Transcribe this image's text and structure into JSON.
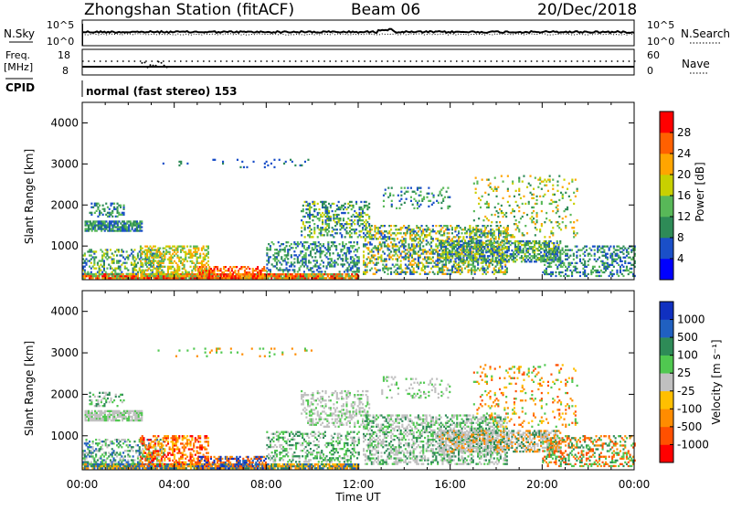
{
  "header": {
    "station": "Zhongshan Station (fitACF)",
    "beam": "Beam 06",
    "date": "20/Dec/2018"
  },
  "top_panel": {
    "left_label": "N.Sky",
    "left_tick_high": "10^5",
    "left_tick_low": "10^0",
    "right_label": "N.Search",
    "right_tick_high": "10^5",
    "right_tick_low": "10^0"
  },
  "freq_panel": {
    "left_label_line1": "Freq.",
    "left_label_line2": "[MHz]",
    "left_tick_high": "18",
    "left_tick_low": "8",
    "right_label": "Nave",
    "right_tick_high": "60",
    "right_tick_low": "0"
  },
  "cpid": {
    "label": "CPID",
    "mode": "normal (fast stereo) 153"
  },
  "colors": {
    "power": [
      "#0000ff",
      "#1a4fc8",
      "#2e8b57",
      "#58b858",
      "#c8d000",
      "#ffa500",
      "#ff6000",
      "#ff0000"
    ],
    "velocity": [
      "#ff0000",
      "#ff5000",
      "#ff8c00",
      "#ffbf00",
      "#c0c0c0",
      "#50c850",
      "#2e8b57",
      "#2060c0",
      "#1030c0"
    ]
  },
  "chart_data": [
    {
      "type": "heatmap",
      "name": "power",
      "ylabel": "Slant Range [km]",
      "yticks": [
        "1000",
        "2000",
        "3000",
        "4000"
      ],
      "colorbar_label": "Power [dB]",
      "colorbar_ticks": [
        "4",
        "8",
        "12",
        "16",
        "20",
        "24",
        "28"
      ],
      "ylim": [
        180,
        4500
      ],
      "xlim": [
        0,
        24
      ]
    },
    {
      "type": "heatmap",
      "name": "velocity",
      "ylabel": "Slant Range [km]",
      "yticks": [
        "1000",
        "2000",
        "3000",
        "4000"
      ],
      "colorbar_label": "Velocity [m s⁻¹]",
      "colorbar_ticks": [
        "-1000",
        "-500",
        "-100",
        "-25",
        "25",
        "100",
        "500",
        "1000"
      ],
      "ylim": [
        180,
        4500
      ],
      "xlim": [
        0,
        24
      ]
    }
  ],
  "x_axis": {
    "ticks": [
      "00:00",
      "04:00",
      "08:00",
      "12:00",
      "16:00",
      "20:00",
      "00:00"
    ],
    "label": "Time UT"
  }
}
